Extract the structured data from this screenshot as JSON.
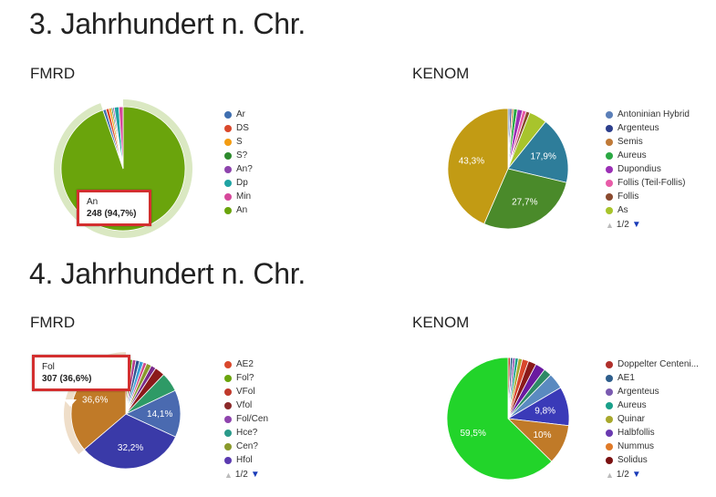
{
  "sections": [
    {
      "title": "3. Jahrhundert n. Chr."
    },
    {
      "title": "4. Jahrhundert n. Chr."
    }
  ],
  "chart_data": [
    {
      "id": "c1",
      "type": "pie",
      "label": "FMRD",
      "legend": [
        "Ar",
        "DS",
        "S",
        "S?",
        "An?",
        "Dp",
        "Min",
        "An"
      ],
      "slices": [
        {
          "name": "An",
          "value": 94.7,
          "color": "#6aa40c",
          "highlight": true
        },
        {
          "name": "Ar",
          "value": 0.8,
          "color": "#3f6fb0"
        },
        {
          "name": "DS",
          "value": 0.8,
          "color": "#d9482c"
        },
        {
          "name": "S",
          "value": 0.6,
          "color": "#f39c12"
        },
        {
          "name": "S?",
          "value": 0.4,
          "color": "#2d8a2d"
        },
        {
          "name": "An?",
          "value": 0.4,
          "color": "#8e44ad"
        },
        {
          "name": "Dp",
          "value": 1.2,
          "color": "#1fa3a3"
        },
        {
          "name": "Min",
          "value": 1.1,
          "color": "#d6489b"
        }
      ],
      "legend_colors": [
        "#3f6fb0",
        "#d9482c",
        "#f39c12",
        "#2d8a2d",
        "#8e44ad",
        "#1fa3a3",
        "#d6489b",
        "#6aa40c"
      ],
      "tooltip": {
        "name": "An",
        "value_text": "248 (94,7%)"
      },
      "pager": null
    },
    {
      "id": "c2",
      "type": "pie",
      "label": "KENOM",
      "legend": [
        "Antoninian Hybrid",
        "Argenteus",
        "Semis",
        "Aureus",
        "Dupondius",
        "Follis (Teil-Follis)",
        "Follis",
        "As"
      ],
      "slices": [
        {
          "name": "Antoninian Hybrid",
          "value": 0.5,
          "color": "#5b7fb8"
        },
        {
          "name": "Argenteus",
          "value": 0.5,
          "color": "#2c3e8c"
        },
        {
          "name": "Semis",
          "value": 0.5,
          "color": "#c07a38"
        },
        {
          "name": "Aureus",
          "value": 1.0,
          "color": "#2aa843"
        },
        {
          "name": "Dupondius",
          "value": 1.4,
          "color": "#9b2fb5"
        },
        {
          "name": "Follis (Teil-Follis)",
          "value": 1.0,
          "color": "#e85ca8"
        },
        {
          "name": "Follis",
          "value": 1.0,
          "color": "#8a4a2e"
        },
        {
          "name": "As",
          "value": 4.8,
          "color": "#a8c42c"
        },
        {
          "name": "",
          "value": 17.9,
          "color": "#2e7d9a",
          "label": "17,9%"
        },
        {
          "name": "",
          "value": 27.7,
          "color": "#4a8a2a",
          "label": "27,7%"
        },
        {
          "name": "",
          "value": 43.3,
          "color": "#c29b14",
          "label": "43,3%"
        }
      ],
      "legend_colors": [
        "#5b7fb8",
        "#2c3e8c",
        "#c07a38",
        "#2aa843",
        "#9b2fb5",
        "#e85ca8",
        "#8a4a2e",
        "#a8c42c"
      ],
      "tooltip": null,
      "pager": {
        "text": "1/2"
      }
    },
    {
      "id": "c3",
      "type": "pie",
      "label": "FMRD",
      "legend": [
        "AE2",
        "Fol?",
        "VFol",
        "Vfol",
        "Fol/Cen",
        "Hce?",
        "Cen?",
        "Hfol"
      ],
      "slices": [
        {
          "name": "",
          "value": 1.0,
          "color": "#c0392b"
        },
        {
          "name": "",
          "value": 1.0,
          "color": "#6aa40c"
        },
        {
          "name": "",
          "value": 1.0,
          "color": "#b03a8c"
        },
        {
          "name": "",
          "value": 1.1,
          "color": "#2e4e8c"
        },
        {
          "name": "",
          "value": 1.2,
          "color": "#3aa0d8"
        },
        {
          "name": "",
          "value": 1.0,
          "color": "#d04a8a"
        },
        {
          "name": "",
          "value": 1.5,
          "color": "#8a9a2c"
        },
        {
          "name": "",
          "value": 1.5,
          "color": "#7a2a8a"
        },
        {
          "name": "",
          "value": 3.0,
          "color": "#8b1a1a"
        },
        {
          "name": "",
          "value": 5.8,
          "color": "#2e9a66"
        },
        {
          "name": "",
          "value": 14.1,
          "color": "#4a6ab0",
          "label": "14,1%"
        },
        {
          "name": "",
          "value": 32.2,
          "color": "#3a3aa8",
          "label": "32,2%"
        },
        {
          "name": "Fol",
          "value": 36.6,
          "color": "#c07a28",
          "label": "36,6%",
          "highlight": true
        }
      ],
      "legend_colors": [
        "#d9482c",
        "#6aa40c",
        "#c0392b",
        "#8b2a2a",
        "#8e44ad",
        "#2a9a8a",
        "#8a9a2c",
        "#5b3ab0"
      ],
      "tooltip": {
        "name": "Fol",
        "value_text": "307 (36,6%)"
      },
      "pager": {
        "text": "1/2"
      }
    },
    {
      "id": "c4",
      "type": "pie",
      "label": "KENOM",
      "legend": [
        "Doppelter Centeni...",
        "AE1",
        "Argenteus",
        "Aureus",
        "Quinar",
        "Halbfollis",
        "Nummus",
        "Solidus"
      ],
      "slices": [
        {
          "name": "",
          "value": 0.6,
          "color": "#c0392b"
        },
        {
          "name": "",
          "value": 0.6,
          "color": "#2e5e8c"
        },
        {
          "name": "",
          "value": 0.6,
          "color": "#8e4ab0"
        },
        {
          "name": "",
          "value": 0.8,
          "color": "#1aa08a"
        },
        {
          "name": "",
          "value": 1.0,
          "color": "#a8a82c"
        },
        {
          "name": "",
          "value": 1.6,
          "color": "#d9482c"
        },
        {
          "name": "",
          "value": 2.0,
          "color": "#8b1a1a"
        },
        {
          "name": "",
          "value": 2.5,
          "color": "#6a1aa0"
        },
        {
          "name": "",
          "value": 2.0,
          "color": "#2e8a66"
        },
        {
          "name": "",
          "value": 4.0,
          "color": "#5a8ac0"
        },
        {
          "name": "",
          "value": 9.8,
          "color": "#3a3ab8",
          "label": "9,8%"
        },
        {
          "name": "",
          "value": 10.0,
          "color": "#c07a28",
          "label": "10%"
        },
        {
          "name": "",
          "value": 59.5,
          "color": "#22d42a",
          "label": "59,5%"
        }
      ],
      "legend_colors": [
        "#b0302b",
        "#2e5e8c",
        "#7a5ab0",
        "#1aa08a",
        "#a8a82c",
        "#6a3ab0",
        "#e07a28",
        "#7a1010"
      ],
      "tooltip": null,
      "pager": {
        "text": "1/2"
      }
    }
  ]
}
